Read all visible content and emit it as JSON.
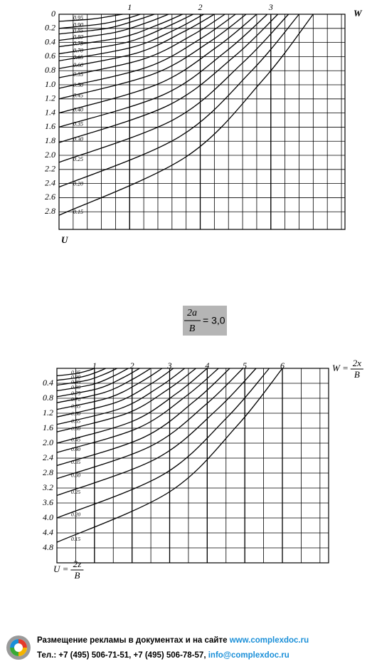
{
  "chart_data": [
    {
      "type": "line",
      "color": "#000000",
      "x_label": "W",
      "y_label": "U",
      "xlim": [
        0,
        4.05
      ],
      "ylim": [
        0,
        3.05
      ],
      "y_inverted": true,
      "grid": true,
      "xticks": [
        1,
        2,
        3
      ],
      "yticks": [
        0,
        0.2,
        0.4,
        0.6,
        0.8,
        {
          "value": 1,
          "label": "1.0"
        },
        1.2,
        1.4,
        1.6,
        1.8,
        {
          "value": 2,
          "label": "2.0"
        },
        2.2,
        2.4,
        2.6,
        2.8
      ],
      "xgrid": [
        0.2,
        0.4,
        0.6,
        0.8,
        1,
        1.2,
        1.4,
        1.6,
        1.8,
        2,
        2.2,
        2.4,
        2.6,
        2.8,
        3,
        3.2,
        3.4,
        3.6,
        3.8,
        4
      ],
      "series": [
        {
          "name": "0.95",
          "x": [
            0,
            0.45,
            0.72,
            0.9
          ],
          "values": [
            0.1,
            0.07,
            0.03,
            0
          ]
        },
        {
          "name": "0.90",
          "x": [
            0,
            0.58,
            0.92,
            1.15
          ],
          "values": [
            0.2,
            0.14,
            0.07,
            0
          ]
        },
        {
          "name": "0.85",
          "x": [
            0,
            0.68,
            1.08,
            1.35
          ],
          "values": [
            0.28,
            0.2,
            0.09,
            0
          ]
        },
        {
          "name": "0.80",
          "x": [
            0,
            0.78,
            1.24,
            1.55
          ],
          "values": [
            0.37,
            0.26,
            0.12,
            0
          ]
        },
        {
          "name": "0.75",
          "x": [
            0,
            0.88,
            1.4,
            1.75
          ],
          "values": [
            0.46,
            0.33,
            0.15,
            0
          ]
        },
        {
          "name": "0.70",
          "x": [
            0,
            0.95,
            1.52,
            1.9
          ],
          "values": [
            0.56,
            0.4,
            0.18,
            0
          ]
        },
        {
          "name": "0.65",
          "x": [
            0,
            1.03,
            1.64,
            2.05
          ],
          "values": [
            0.66,
            0.47,
            0.22,
            0
          ]
        },
        {
          "name": "0.60",
          "x": [
            0,
            1.1,
            1.76,
            2.2
          ],
          "values": [
            0.77,
            0.55,
            0.25,
            0
          ]
        },
        {
          "name": "0.55",
          "x": [
            0,
            1.18,
            1.88,
            2.35
          ],
          "values": [
            0.9,
            0.64,
            0.3,
            0
          ]
        },
        {
          "name": "0.50",
          "x": [
            0,
            1.25,
            2,
            2.5
          ],
          "values": [
            1.05,
            0.75,
            0.35,
            0
          ]
        },
        {
          "name": "0.45",
          "x": [
            0,
            1.33,
            2.12,
            2.65
          ],
          "values": [
            1.2,
            0.85,
            0.4,
            0
          ]
        },
        {
          "name": "0.40",
          "x": [
            0,
            1.4,
            2.24,
            2.8
          ],
          "values": [
            1.4,
            0.99,
            0.46,
            0
          ]
        },
        {
          "name": "0.35",
          "x": [
            0,
            1.48,
            2.36,
            2.95
          ],
          "values": [
            1.6,
            1.14,
            0.53,
            0
          ]
        },
        {
          "name": "0.30",
          "x": [
            0,
            1.55,
            2.48,
            3.1
          ],
          "values": [
            1.82,
            1.29,
            0.6,
            0
          ]
        },
        {
          "name": "0.25",
          "x": [
            0,
            1.63,
            2.6,
            3.25
          ],
          "values": [
            2.1,
            1.49,
            0.69,
            0
          ]
        },
        {
          "name": "0.20",
          "x": [
            0,
            1.7,
            2.72,
            3.4
          ],
          "values": [
            2.45,
            1.74,
            0.81,
            0
          ]
        },
        {
          "name": "0.15",
          "x": [
            0,
            1.8,
            2.88,
            3.6
          ],
          "values": [
            2.85,
            2.02,
            0.94,
            0
          ]
        }
      ]
    },
    {
      "type": "line",
      "color": "#000000",
      "x_label": {
        "text": "W =",
        "numerator": "2x",
        "denominator": "B"
      },
      "y_label": {
        "text": "U =",
        "numerator": "2z",
        "denominator": "B"
      },
      "xlim": [
        0,
        7.23
      ],
      "ylim": [
        0,
        5.2
      ],
      "y_inverted": true,
      "grid": true,
      "xticks": [
        1,
        2,
        3,
        4,
        5,
        6
      ],
      "yticks": [
        0.4,
        0.8,
        1.2,
        1.6,
        {
          "value": 2,
          "label": "2.0"
        },
        2.4,
        2.8,
        3.2,
        3.6,
        {
          "value": 4,
          "label": "4.0"
        },
        4.4,
        4.8
      ],
      "xgrid": [
        0.5,
        1,
        1.5,
        2,
        2.5,
        3,
        3.5,
        4,
        4.5,
        5,
        5.5,
        6,
        6.5,
        7
      ],
      "series": [
        {
          "name": "0.95",
          "x": [
            0,
            0.5,
            0.8,
            1
          ],
          "values": [
            0.2,
            0.14,
            0.07,
            0
          ]
        },
        {
          "name": "0.90",
          "x": [
            0,
            0.65,
            1.04,
            1.3
          ],
          "values": [
            0.32,
            0.23,
            0.11,
            0
          ]
        },
        {
          "name": "0.85",
          "x": [
            0,
            0.8,
            1.28,
            1.6
          ],
          "values": [
            0.45,
            0.32,
            0.15,
            0
          ]
        },
        {
          "name": "0.80",
          "x": [
            0,
            0.95,
            1.52,
            1.9
          ],
          "values": [
            0.6,
            0.43,
            0.2,
            0
          ]
        },
        {
          "name": "0.75",
          "x": [
            0,
            1.1,
            1.76,
            2.2
          ],
          "values": [
            0.76,
            0.54,
            0.25,
            0
          ]
        },
        {
          "name": "0.70",
          "x": [
            0,
            1.25,
            2,
            2.5
          ],
          "values": [
            0.92,
            0.65,
            0.3,
            0
          ]
        },
        {
          "name": "0.65",
          "x": [
            0,
            1.4,
            2.24,
            2.8
          ],
          "values": [
            1.1,
            0.78,
            0.36,
            0
          ]
        },
        {
          "name": "0.60",
          "x": [
            0,
            1.55,
            2.48,
            3.1
          ],
          "values": [
            1.3,
            0.92,
            0.43,
            0
          ]
        },
        {
          "name": "0.55",
          "x": [
            0,
            1.7,
            2.72,
            3.4
          ],
          "values": [
            1.5,
            1.07,
            0.5,
            0
          ]
        },
        {
          "name": "0.50",
          "x": [
            0,
            1.85,
            2.96,
            3.7
          ],
          "values": [
            1.7,
            1.21,
            0.56,
            0
          ]
        },
        {
          "name": "0.45",
          "x": [
            0,
            2,
            3.2,
            4
          ],
          "values": [
            2,
            1.42,
            0.66,
            0
          ]
        },
        {
          "name": "0.40",
          "x": [
            0,
            2.15,
            3.44,
            4.3
          ],
          "values": [
            2.25,
            1.6,
            0.74,
            0
          ]
        },
        {
          "name": "0.35",
          "x": [
            0,
            2.3,
            3.68,
            4.6
          ],
          "values": [
            2.6,
            1.85,
            0.86,
            0
          ]
        },
        {
          "name": "0.30",
          "x": [
            0,
            2.48,
            3.96,
            4.95
          ],
          "values": [
            2.95,
            2.09,
            0.97,
            0
          ]
        },
        {
          "name": "0.25",
          "x": [
            0,
            2.65,
            4.24,
            5.3
          ],
          "values": [
            3.4,
            2.41,
            1.12,
            0
          ]
        },
        {
          "name": "0.20",
          "x": [
            0,
            2.83,
            4.52,
            5.65
          ],
          "values": [
            4,
            2.84,
            1.32,
            0
          ]
        },
        {
          "name": "0.15",
          "x": [
            0,
            3,
            4.8,
            6
          ],
          "values": [
            4.65,
            3.3,
            1.53,
            0
          ]
        }
      ]
    }
  ],
  "formula": {
    "numerator": "2a",
    "denominator": "B",
    "rest": "= 3,0"
  },
  "footer": {
    "line1": "Размещение рекламы в документах и на сайте ",
    "site": "www.complexdoc.ru",
    "line2": "Тел.: +7 (495) 506-71-51, +7 (495) 506-78-57, ",
    "email": "info@complexdoc.ru"
  }
}
